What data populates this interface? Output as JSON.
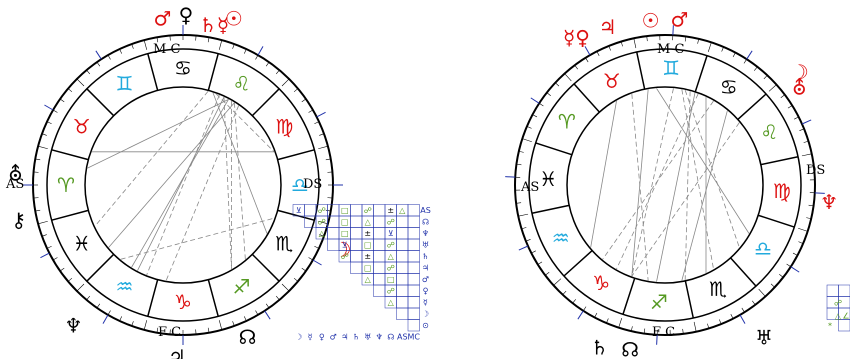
{
  "charts": [
    {
      "id": "left",
      "cx": 0,
      "cy": 0,
      "axis_labels": {
        "asc": "AS",
        "dsc": "DS",
        "mc": "M C",
        "ic": "F C"
      },
      "show_dsc_label": false,
      "signs": [
        {
          "glyph": "♋",
          "color": "#000000"
        },
        {
          "glyph": "♊",
          "color": "#22aadd"
        },
        {
          "glyph": "♉",
          "color": "#dd1111"
        },
        {
          "glyph": "♈",
          "color": "#559922"
        },
        {
          "glyph": "♓",
          "color": "#000000"
        },
        {
          "glyph": "♒",
          "color": "#22aadd"
        },
        {
          "glyph": "♑",
          "color": "#dd1111"
        },
        {
          "glyph": "♐",
          "color": "#559922"
        },
        {
          "glyph": "♏",
          "color": "#000000"
        },
        {
          "glyph": "♎",
          "color": "#22aadd"
        },
        {
          "glyph": "♍",
          "color": "#dd1111"
        },
        {
          "glyph": "♌",
          "color": "#559922"
        }
      ],
      "planets": [
        {
          "glyph": "♂",
          "color": "#dd1111"
        },
        {
          "glyph": "♀",
          "color": "#000000"
        },
        {
          "glyph": "☉",
          "color": "#dd1111"
        },
        {
          "glyph": "♄☿",
          "color": "#dd1111"
        },
        {
          "glyph": "☽",
          "color": "#dd1111"
        },
        {
          "glyph": "♃",
          "color": "#000000"
        },
        {
          "glyph": "☊",
          "color": "#000000"
        },
        {
          "glyph": "♆",
          "color": "#000000"
        },
        {
          "glyph": "⛢",
          "color": "#000000"
        },
        {
          "glyph": "⚷",
          "color": "#000000"
        }
      ]
    },
    {
      "id": "right",
      "axis_labels": {
        "asc": "AS",
        "dsc": "DS",
        "mc": "M C",
        "ic": "F C"
      },
      "signs": [
        {
          "glyph": "♊",
          "color": "#22aadd"
        },
        {
          "glyph": "♉",
          "color": "#dd1111"
        },
        {
          "glyph": "♈",
          "color": "#559922"
        },
        {
          "glyph": "♓",
          "color": "#000000"
        },
        {
          "glyph": "♒",
          "color": "#22aadd"
        },
        {
          "glyph": "♑",
          "color": "#dd1111"
        },
        {
          "glyph": "♐",
          "color": "#559922"
        },
        {
          "glyph": "♏",
          "color": "#000000"
        },
        {
          "glyph": "♎",
          "color": "#22aadd"
        },
        {
          "glyph": "♍",
          "color": "#dd1111"
        },
        {
          "glyph": "♌",
          "color": "#559922"
        },
        {
          "glyph": "♋",
          "color": "#000000"
        }
      ],
      "planets": [
        {
          "glyph": "☿♀",
          "color": "#dd1111"
        },
        {
          "glyph": "♃",
          "color": "#dd1111"
        },
        {
          "glyph": "☉",
          "color": "#dd1111"
        },
        {
          "glyph": "♂",
          "color": "#dd1111"
        },
        {
          "glyph": "☽",
          "color": "#dd1111"
        },
        {
          "glyph": "⛢",
          "color": "#dd1111"
        },
        {
          "glyph": "♆",
          "color": "#dd1111"
        },
        {
          "glyph": "♅",
          "color": "#000000"
        },
        {
          "glyph": "♄",
          "color": "#000000"
        },
        {
          "glyph": "☊",
          "color": "#000000"
        }
      ]
    }
  ],
  "aspect_grid": {
    "row_labels": [
      "AS",
      "☊",
      "♆",
      "♅",
      "♄",
      "♃",
      "♂",
      "♀",
      "☿",
      "☽",
      "⊙"
    ],
    "col_labels": [
      "☽",
      "☿",
      "♀",
      "♂",
      "♃",
      "♄",
      "♅",
      "♆",
      "☊",
      "AS",
      "MC"
    ],
    "mc_label": "MC"
  },
  "colors": {
    "ring_stroke": "#000000",
    "tick_blue": "#2233aa",
    "aspect_line": "#888888",
    "grid_line": "#2233aa"
  }
}
